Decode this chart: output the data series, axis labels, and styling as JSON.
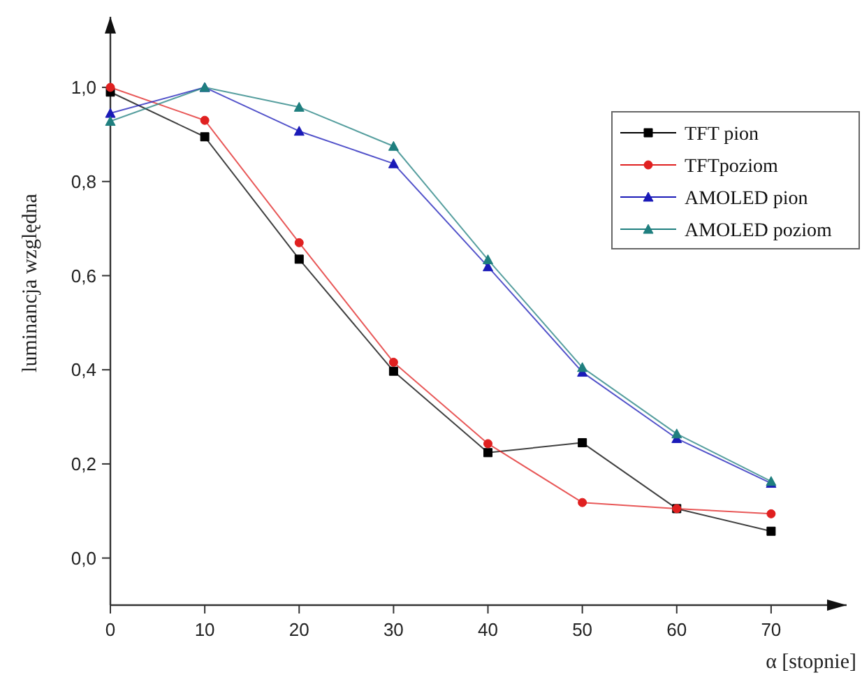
{
  "chart_data": {
    "type": "line",
    "xlabel": "α [stopnie]",
    "ylabel": "luminancja względna",
    "x": [
      0,
      10,
      20,
      30,
      40,
      50,
      60,
      70
    ],
    "xlim": [
      0,
      78
    ],
    "xticks": [
      0,
      10,
      20,
      30,
      40,
      50,
      60,
      70
    ],
    "ylim": [
      -0.1,
      1.15
    ],
    "yticks": [
      {
        "value": 0,
        "label": "0,0"
      },
      {
        "value": 0.2,
        "label": "0,2"
      },
      {
        "value": 0.4,
        "label": "0,4"
      },
      {
        "value": 0.6,
        "label": "0,6"
      },
      {
        "value": 0.8,
        "label": "0,8"
      },
      {
        "value": 1,
        "label": "1,0"
      }
    ],
    "grid": false,
    "legend": "top right",
    "line_style": "solid",
    "series": [
      {
        "name": "TFT pion",
        "color": "#000000",
        "marker": "square",
        "values": [
          0.99,
          0.895,
          0.635,
          0.397,
          0.224,
          0.245,
          0.105,
          0.057
        ]
      },
      {
        "name": "TFTpoziom",
        "color": "#e02020",
        "marker": "circle",
        "values": [
          1.0,
          0.93,
          0.67,
          0.416,
          0.243,
          0.118,
          0.105,
          0.094
        ]
      },
      {
        "name": "AMOLED pion",
        "color": "#1a1ab8",
        "marker": "triangle",
        "values": [
          0.945,
          1.0,
          0.907,
          0.838,
          0.619,
          0.395,
          0.254,
          0.159
        ]
      },
      {
        "name": "AMOLED poziom",
        "color": "#1f7f7f",
        "marker": "triangle",
        "values": [
          0.928,
          1.0,
          0.958,
          0.875,
          0.634,
          0.405,
          0.264,
          0.163
        ]
      }
    ]
  }
}
